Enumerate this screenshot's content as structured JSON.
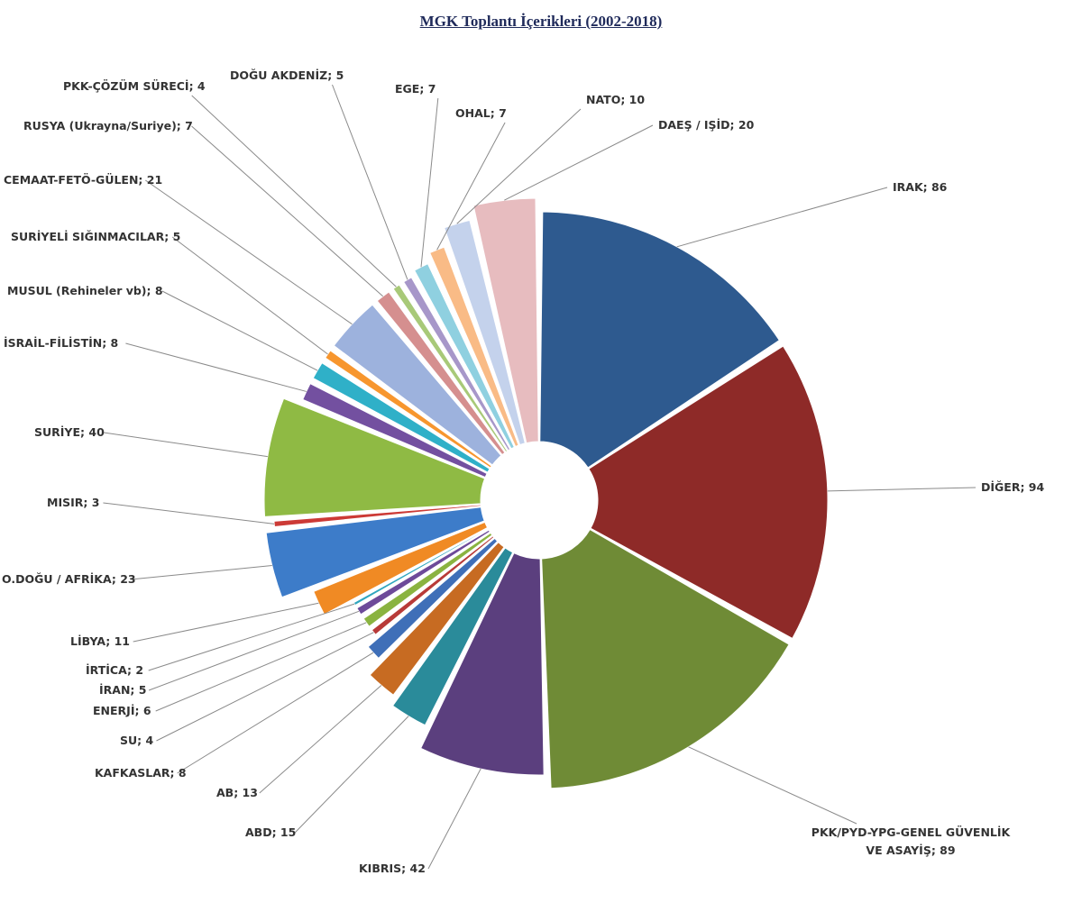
{
  "chart_data": {
    "type": "pie",
    "title": "MGK Toplantı İçerikleri (2002-2018)",
    "slices": [
      {
        "label": "IRAK",
        "value": 86,
        "color": "#2e5a8f",
        "display": "IRAK; 86"
      },
      {
        "label": "DİĞER",
        "value": 94,
        "color": "#8e2a28",
        "display": "DİĞER; 94"
      },
      {
        "label": "PKK/PYD-YPG-GENEL GÜVENLİK VE ASAYİŞ",
        "value": 89,
        "color": "#6f8b36",
        "display": [
          "PKK/PYD-YPG-GENEL GÜVENLİK",
          "VE ASAYİŞ; 89"
        ]
      },
      {
        "label": "KIBRIS",
        "value": 42,
        "color": "#5b3f7e",
        "display": "KIBRIS; 42"
      },
      {
        "label": "ABD",
        "value": 15,
        "color": "#2a8b9a",
        "display": "ABD; 15"
      },
      {
        "label": "AB",
        "value": 13,
        "color": "#c76b22",
        "display": "AB; 13"
      },
      {
        "label": "KAFKASLAR",
        "value": 8,
        "color": "#3f6fb8",
        "display": "KAFKASLAR; 8"
      },
      {
        "label": "SU",
        "value": 4,
        "color": "#b83a38",
        "display": "SU; 4"
      },
      {
        "label": "ENERJİ",
        "value": 6,
        "color": "#8ab340",
        "display": "ENERJİ; 6"
      },
      {
        "label": "İRAN",
        "value": 5,
        "color": "#6d4a99",
        "display": "İRAN; 5"
      },
      {
        "label": "İRTİCA",
        "value": 2,
        "color": "#2fa6be",
        "display": "İRTİCA; 2"
      },
      {
        "label": "LİBYA",
        "value": 11,
        "color": "#f08a24",
        "display": "LİBYA; 11"
      },
      {
        "label": "O.DOĞU / AFRİKA",
        "value": 23,
        "color": "#3d7cc9",
        "display": "O.DOĞU / AFRİKA; 23"
      },
      {
        "label": "MISIR",
        "value": 3,
        "color": "#cc3a36",
        "display": "MISIR; 3"
      },
      {
        "label": "SURİYE",
        "value": 40,
        "color": "#8fba44",
        "display": "SURİYE; 40"
      },
      {
        "label": "İSRAİL-FİLİSTİN",
        "value": 8,
        "color": "#7350a0",
        "display": "İSRAİL-FİLİSTİN; 8"
      },
      {
        "label": "MUSUL (Rehineler vb)",
        "value": 8,
        "color": "#2fb0c8",
        "display": "MUSUL (Rehineler vb); 8"
      },
      {
        "label": "SURİYELİ SIĞINMACILAR",
        "value": 5,
        "color": "#f7962e",
        "display": "SURİYELİ SIĞINMACILAR; 5"
      },
      {
        "label": "CEMAAT-FETÖ-GÜLEN",
        "value": 21,
        "color": "#9db2dd",
        "display": "CEMAAT-FETÖ-GÜLEN; 21"
      },
      {
        "label": "RUSYA (Ukrayna/Suriye)",
        "value": 7,
        "color": "#d58f8f",
        "display": "RUSYA (Ukrayna/Suriye); 7"
      },
      {
        "label": "PKK-ÇÖZÜM SÜRECİ",
        "value": 4,
        "color": "#a8c978",
        "display": "PKK-ÇÖZÜM SÜRECİ; 4"
      },
      {
        "label": "DOĞU AKDENİZ",
        "value": 5,
        "color": "#a797c9",
        "display": "DOĞU AKDENİZ; 5"
      },
      {
        "label": "EGE",
        "value": 7,
        "color": "#8fd0e0",
        "display": "EGE; 7"
      },
      {
        "label": "OHAL",
        "value": 7,
        "color": "#f9bb86",
        "display": "OHAL; 7"
      },
      {
        "label": "NATO",
        "value": 10,
        "color": "#c4d2ec",
        "display": "NATO; 10"
      },
      {
        "label": "DAEŞ / IŞİD",
        "value": 20,
        "color": "#e7bcbf",
        "display": "DAEŞ / IŞİD; 20"
      }
    ]
  }
}
